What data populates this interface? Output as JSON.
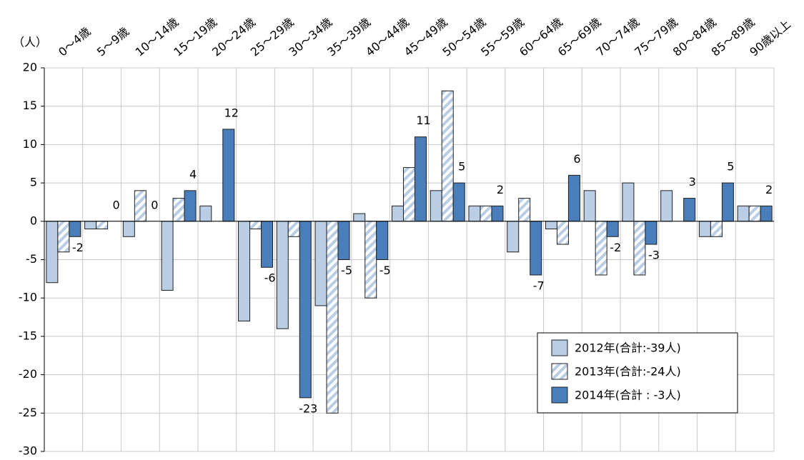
{
  "chart_data": {
    "type": "bar",
    "y_unit_label": "（人）",
    "categories": [
      "0～4歳",
      "5～9歳",
      "10～14歳",
      "15～19歳",
      "20～24歳",
      "25～29歳",
      "30～34歳",
      "35～39歳",
      "40～44歳",
      "45～49歳",
      "50～54歳",
      "55～59歳",
      "60～64歳",
      "65～69歳",
      "70～74歳",
      "75～79歳",
      "80～84歳",
      "85～89歳",
      "90歳以上"
    ],
    "series": [
      {
        "name": "2012年(合計:-39人)",
        "color": "#b9cde5",
        "values": [
          -8,
          -1,
          -2,
          -9,
          2,
          -13,
          -14,
          -11,
          1,
          2,
          4,
          2,
          -4,
          -1,
          4,
          5,
          4,
          -2,
          2
        ]
      },
      {
        "name": "2013年(合計:-24人)",
        "color": "#b9cde5",
        "hatch": true,
        "values": [
          -4,
          -1,
          4,
          3,
          0,
          -1,
          -2,
          -25,
          -10,
          7,
          17,
          2,
          3,
          -3,
          -7,
          -7,
          0,
          -2,
          2
        ]
      },
      {
        "name": "2014年(合計 : -3人)",
        "color": "#4a7ebb",
        "data_labels": true,
        "values": [
          -2,
          0,
          0,
          4,
          12,
          -6,
          -23,
          -5,
          -5,
          11,
          5,
          2,
          -7,
          6,
          -2,
          -3,
          3,
          5,
          2
        ]
      }
    ],
    "ylim": [
      -30,
      20
    ],
    "yticks": [
      -30,
      -25,
      -20,
      -15,
      -10,
      -5,
      0,
      5,
      10,
      15,
      20
    ],
    "grid": true,
    "legend": "lower right"
  }
}
